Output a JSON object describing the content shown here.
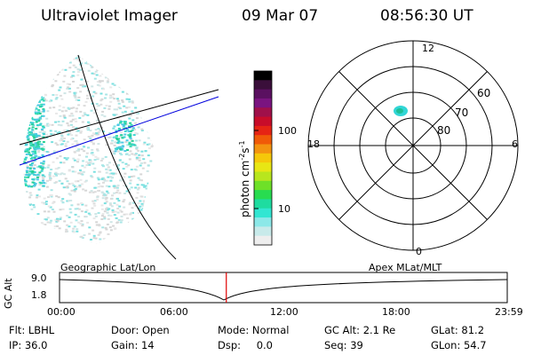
{
  "header": {
    "instrument": "Ultraviolet Imager",
    "date": "09 Mar 07",
    "time": "08:56:30 UT"
  },
  "colorbar": {
    "label": "photon cm",
    "label_sup1": "-2",
    "label_s": "s",
    "label_sup2": "-1",
    "ticks": [
      "100",
      "10"
    ],
    "colors": [
      "#000000",
      "#3a0f3a",
      "#5a1060",
      "#7a1480",
      "#a0104a",
      "#c80c2a",
      "#e62414",
      "#f05a08",
      "#f39410",
      "#f5c80a",
      "#e8e614",
      "#b8e61e",
      "#6ee028",
      "#28dc50",
      "#1edca0",
      "#32e6d2",
      "#8ce8e8",
      "#c8eaea",
      "#eeeeee"
    ]
  },
  "polar_plot": {
    "mlt_labels": {
      "top": "12",
      "left": "18",
      "right": "6",
      "bottom": "0"
    },
    "lat_labels": [
      "60",
      "70",
      "80"
    ]
  },
  "timeline": {
    "y_axis_label": "GC Alt",
    "y_ticks": [
      "9.0",
      "1.8"
    ],
    "left_title": "Geographic Lat/Lon",
    "right_title": "Apex  MLat/MLT",
    "x_ticks": [
      "00:00",
      "06:00",
      "12:00",
      "18:00",
      "23:59"
    ],
    "current_time_fraction": 0.3725
  },
  "info": {
    "row1": [
      {
        "label": "Flt:",
        "value": "LBHL"
      },
      {
        "label": "Door:",
        "value": "Open"
      },
      {
        "label": "Mode:",
        "value": "Normal"
      },
      {
        "label": "GC Alt:",
        "value": "2.1 Re"
      },
      {
        "label": "GLat:",
        "value": "81.2"
      }
    ],
    "row2": [
      {
        "label": "IP:",
        "value": "36.0"
      },
      {
        "label": "Gain:",
        "value": "14"
      },
      {
        "label": "Dsp:",
        "value": "0.0"
      },
      {
        "label": "Seq:",
        "value": "39"
      },
      {
        "label": "GLon:",
        "value": "54.7"
      }
    ]
  }
}
